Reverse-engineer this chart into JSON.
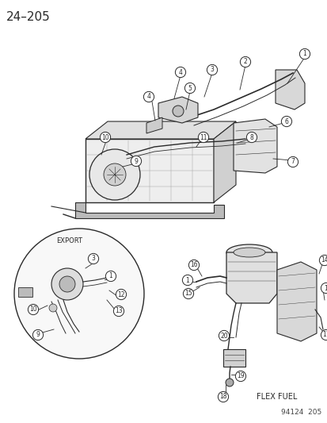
{
  "title": "24–205",
  "background_color": "#ffffff",
  "page_number": "94124  205",
  "fig_width": 4.14,
  "fig_height": 5.33,
  "dpi": 100,
  "line_color": "#2a2a2a",
  "fill_color": "#ffffff",
  "text_color": "#111111",
  "gray_light": "#c8c8c8",
  "gray_mid": "#aaaaaa",
  "circle_r": 0.016,
  "callout_fs": 5.5,
  "title_fs": 11,
  "label_fs": 7,
  "page_fs": 6.5
}
